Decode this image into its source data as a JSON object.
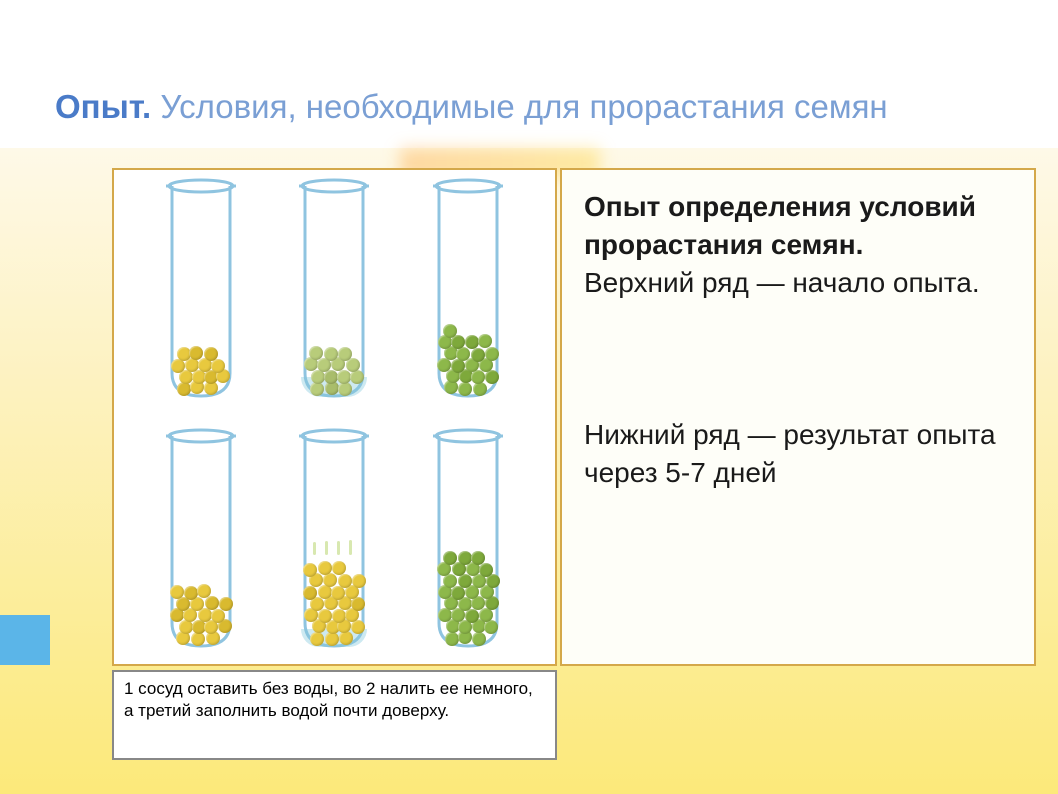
{
  "title_bold": "Опыт.",
  "title_rest": " Условия, необходимые для прорастания семян",
  "info": {
    "title": "Опыт определения условий прорастания семян.",
    "row_top": "Верхний ряд — начало опыта.",
    "row_bottom": "Нижний ряд — результат опыта через 5-7 дней"
  },
  "caption": "1 сосуд оставить без воды, во 2 налить ее немного, а третий заполнить водой почти доверху.",
  "colors": {
    "tube_outline": "#8fc4e0",
    "seed_yellow": "#e8c93e",
    "seed_yellow_dark": "#d4b52a",
    "seed_green": "#8db84a",
    "seed_green_dark": "#6a9430",
    "seed_pale_green": "#b8cc7a",
    "water": "rgba(130,200,220,0.4)",
    "panel_border": "#d4a84a",
    "title_bold_color": "#4a7bc8",
    "title_color": "#7a9fd4",
    "bg_gradient_top": "#fef9e8",
    "bg_gradient_bottom": "#fce97a"
  },
  "tubes": {
    "top": [
      {
        "seed_color": "#e8c93e",
        "seed_count": 14,
        "water_height": 0,
        "fill_height": 58
      },
      {
        "seed_color": "#b8cc7a",
        "seed_count": 14,
        "water_height": 20,
        "fill_height": 58
      },
      {
        "seed_color": "#8db84a",
        "seed_count": 20,
        "water_height": 0,
        "fill_height": 70
      }
    ],
    "bottom": [
      {
        "seed_color": "#e8c93e",
        "seed_count": 18,
        "water_height": 0,
        "fill_height": 68
      },
      {
        "seed_color": "#e8c93e",
        "seed_count": 26,
        "water_height": 18,
        "fill_height": 100,
        "sprouting": true
      },
      {
        "seed_color": "#8db84a",
        "seed_count": 30,
        "water_height": 0,
        "fill_height": 115
      }
    ]
  },
  "seed_size": 14
}
